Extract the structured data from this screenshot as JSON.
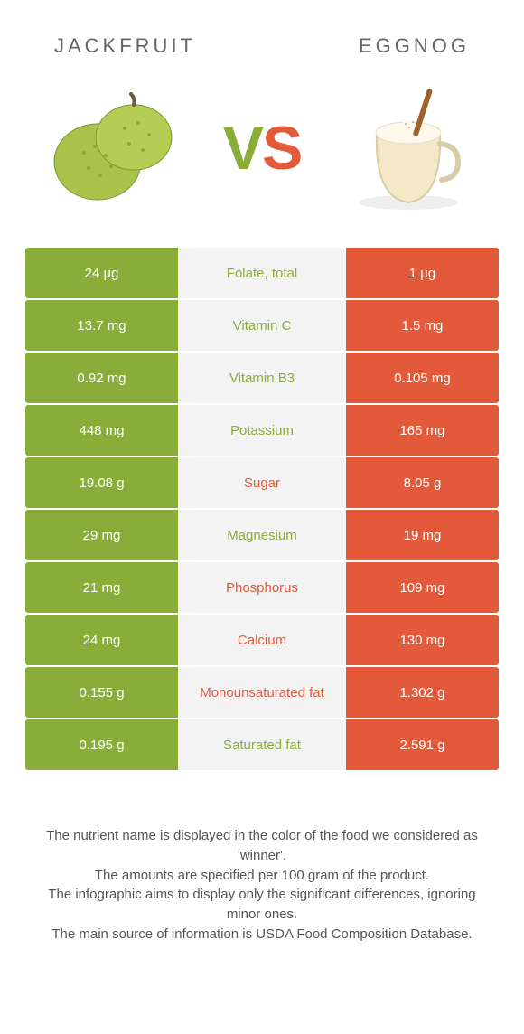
{
  "header": {
    "left_title": "Jackfruit",
    "right_title": "Eggnog",
    "vs_v": "V",
    "vs_s": "S"
  },
  "colors": {
    "left": "#8aad3a",
    "right": "#e25a3a",
    "mid_bg": "#f3f3f3",
    "page_bg": "#ffffff"
  },
  "rows": [
    {
      "left": "24 µg",
      "label": "Folate, total",
      "right": "1 µg",
      "winner": "left"
    },
    {
      "left": "13.7 mg",
      "label": "Vitamin C",
      "right": "1.5 mg",
      "winner": "left"
    },
    {
      "left": "0.92 mg",
      "label": "Vitamin B3",
      "right": "0.105 mg",
      "winner": "left"
    },
    {
      "left": "448 mg",
      "label": "Potassium",
      "right": "165 mg",
      "winner": "left"
    },
    {
      "left": "19.08 g",
      "label": "Sugar",
      "right": "8.05 g",
      "winner": "right"
    },
    {
      "left": "29 mg",
      "label": "Magnesium",
      "right": "19 mg",
      "winner": "left"
    },
    {
      "left": "21 mg",
      "label": "Phosphorus",
      "right": "109 mg",
      "winner": "right"
    },
    {
      "left": "24 mg",
      "label": "Calcium",
      "right": "130 mg",
      "winner": "right"
    },
    {
      "left": "0.155 g",
      "label": "Monounsaturated fat",
      "right": "1.302 g",
      "winner": "right"
    },
    {
      "left": "0.195 g",
      "label": "Saturated fat",
      "right": "2.591 g",
      "winner": "left"
    }
  ],
  "footnote": {
    "l1": "The nutrient name is displayed in the color of the food we considered as 'winner'.",
    "l2": "The amounts are specified per 100 gram of the product.",
    "l3": "The infographic aims to display only the significant differences, ignoring minor ones.",
    "l4": "The main source of information is USDA Food Composition Database."
  }
}
